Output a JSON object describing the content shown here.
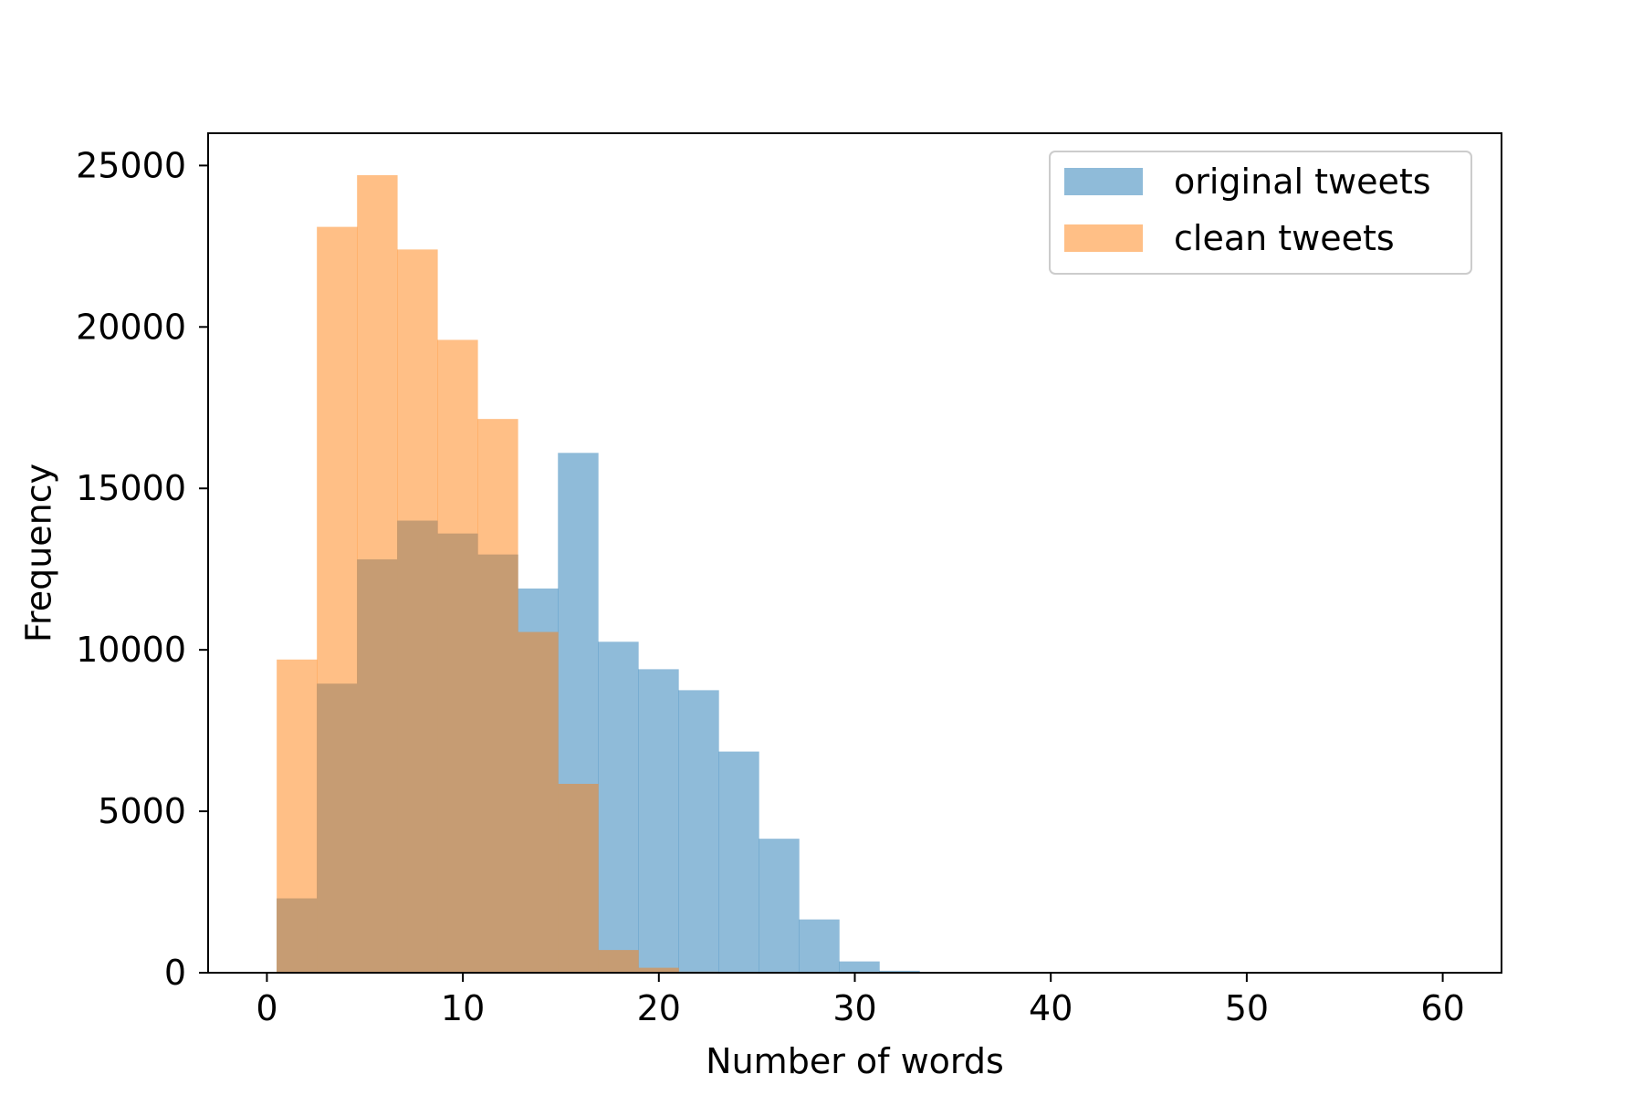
{
  "chart_data": {
    "type": "bar",
    "xlabel": "Number of words",
    "ylabel": "Frequency",
    "xlim": [
      -3,
      63
    ],
    "ylim": [
      0,
      26000
    ],
    "xticks": [
      0,
      10,
      20,
      30,
      40,
      50,
      60
    ],
    "yticks": [
      0,
      5000,
      10000,
      15000,
      20000,
      25000
    ],
    "xtick_labels": [
      "0",
      "10",
      "20",
      "30",
      "40",
      "50",
      "60"
    ],
    "ytick_labels": [
      "0",
      "5000",
      "10000",
      "15000",
      "20000",
      "25000"
    ],
    "grid": false,
    "legend_position": "top-right",
    "bin_edges": [
      0.5,
      2.55,
      4.6,
      6.65,
      8.7,
      10.75,
      12.8,
      14.85,
      16.9,
      18.95,
      21.0,
      23.05,
      25.1,
      27.15,
      29.2,
      31.25,
      33.3
    ],
    "series": [
      {
        "name": "original tweets",
        "color": "#1f77b4",
        "values": [
          2300,
          8950,
          12800,
          14000,
          13600,
          12950,
          11900,
          16100,
          10250,
          9400,
          8750,
          6850,
          4150,
          1650,
          350,
          60
        ]
      },
      {
        "name": "clean tweets",
        "color": "#ff7f0e",
        "values": [
          9700,
          23100,
          24700,
          22400,
          19600,
          17150,
          10550,
          5850,
          700,
          150,
          30,
          0,
          0,
          0,
          0,
          0
        ]
      }
    ],
    "overlap_color": "#c69c73"
  }
}
